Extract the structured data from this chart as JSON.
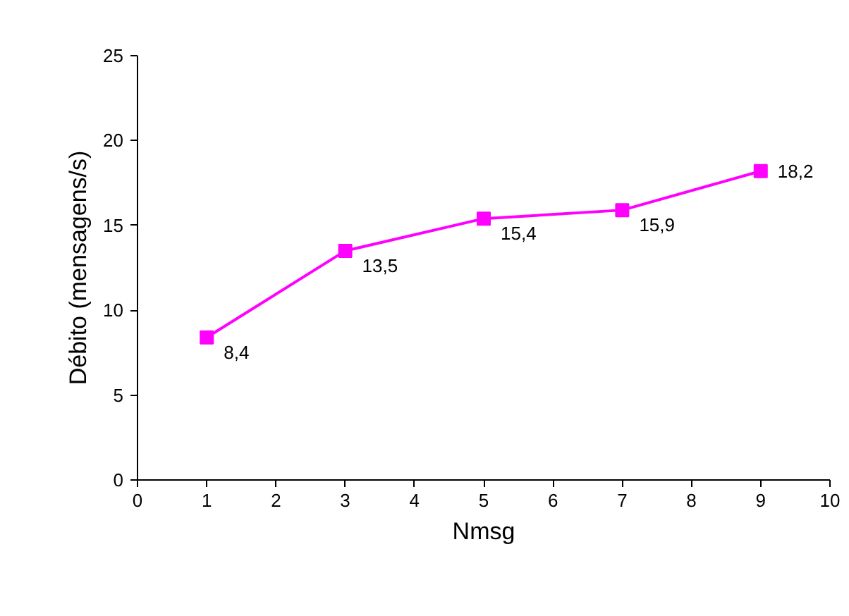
{
  "chart_data": {
    "type": "line",
    "xlabel": "Nmsg",
    "ylabel": "Débito (mensagens/s)",
    "x": [
      1,
      3,
      5,
      7,
      9
    ],
    "series": [
      {
        "color": "#ff00ff",
        "values": [
          8.4,
          13.5,
          15.4,
          15.9,
          18.2
        ],
        "value_labels": [
          "8,4",
          "13,5",
          "15,4",
          "15,9",
          "18,2"
        ]
      }
    ],
    "xlim": [
      0,
      10
    ],
    "xticks": [
      0,
      1,
      2,
      3,
      4,
      5,
      6,
      7,
      8,
      9,
      10
    ],
    "ylim": [
      0,
      25
    ],
    "yticks": [
      0,
      5,
      10,
      15,
      20,
      25
    ],
    "grid": false,
    "marker": "square",
    "line_style": "solid"
  }
}
